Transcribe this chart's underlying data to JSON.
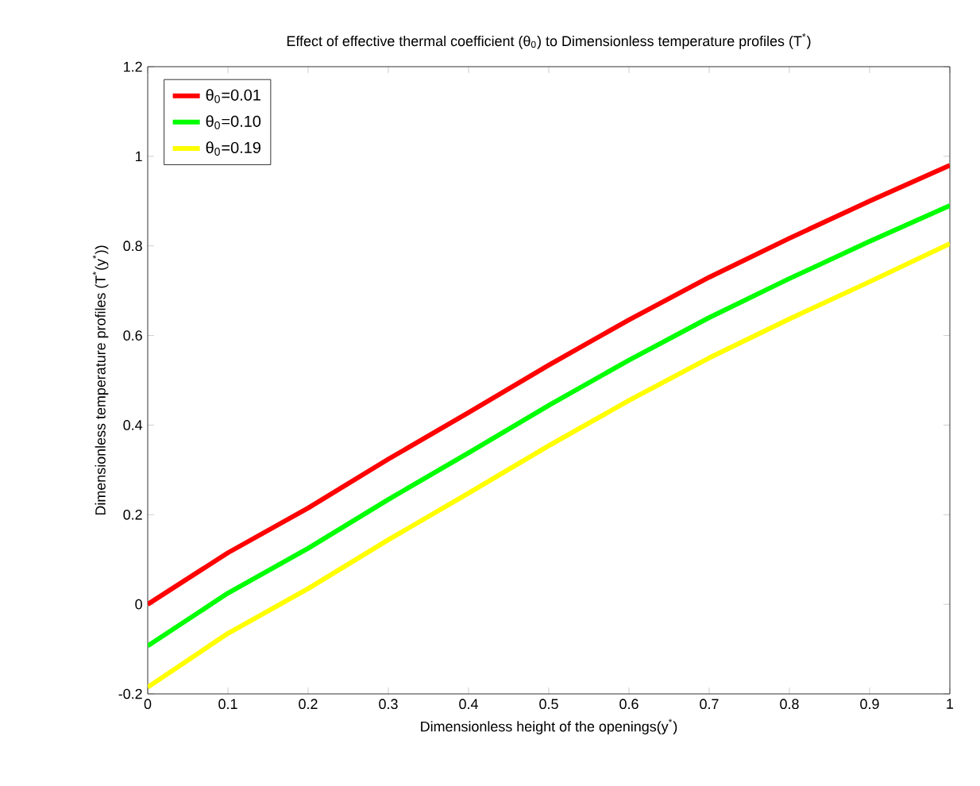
{
  "chart_data": {
    "type": "line",
    "title": "Effect of effective thermal coefficient (θ$_{0}$) to Dimensionless temperature profiles (T$^{*}$)",
    "xlabel": "Dimensionless height of the openings(y$^{*}$)",
    "ylabel": "Dimensionless temperature profiles (T$^{*}$(y$^{*}$))",
    "x": [
      0,
      0.1,
      0.2,
      0.3,
      0.4,
      0.5,
      0.6,
      0.7,
      0.8,
      0.9,
      1
    ],
    "series": [
      {
        "name": "θ$_{0}$=0.01",
        "color": "#ff0000",
        "values": [
          0,
          0.115,
          0.215,
          0.324,
          0.428,
          0.534,
          0.635,
          0.73,
          0.817,
          0.9,
          0.98
        ]
      },
      {
        "name": "θ$_{0}$=0.10",
        "color": "#00ff00",
        "values": [
          -0.093,
          0.025,
          0.125,
          0.234,
          0.338,
          0.444,
          0.545,
          0.64,
          0.727,
          0.81,
          0.89
        ]
      },
      {
        "name": "θ$_{0}$=0.19",
        "color": "#ffff00",
        "values": [
          -0.185,
          -0.065,
          0.035,
          0.144,
          0.248,
          0.354,
          0.455,
          0.55,
          0.637,
          0.72,
          0.805
        ]
      }
    ],
    "xlim": [
      0,
      1
    ],
    "ylim": [
      -0.2,
      1.2
    ],
    "xticks": [
      0,
      0.1,
      0.2,
      0.3,
      0.4,
      0.5,
      0.6,
      0.7,
      0.8,
      0.9,
      1
    ],
    "yticks": [
      -0.2,
      0,
      0.2,
      0.4,
      0.6,
      0.8,
      1,
      1.2
    ],
    "grid": false,
    "legend": "top left",
    "marker": "none",
    "line_style": "solid"
  }
}
